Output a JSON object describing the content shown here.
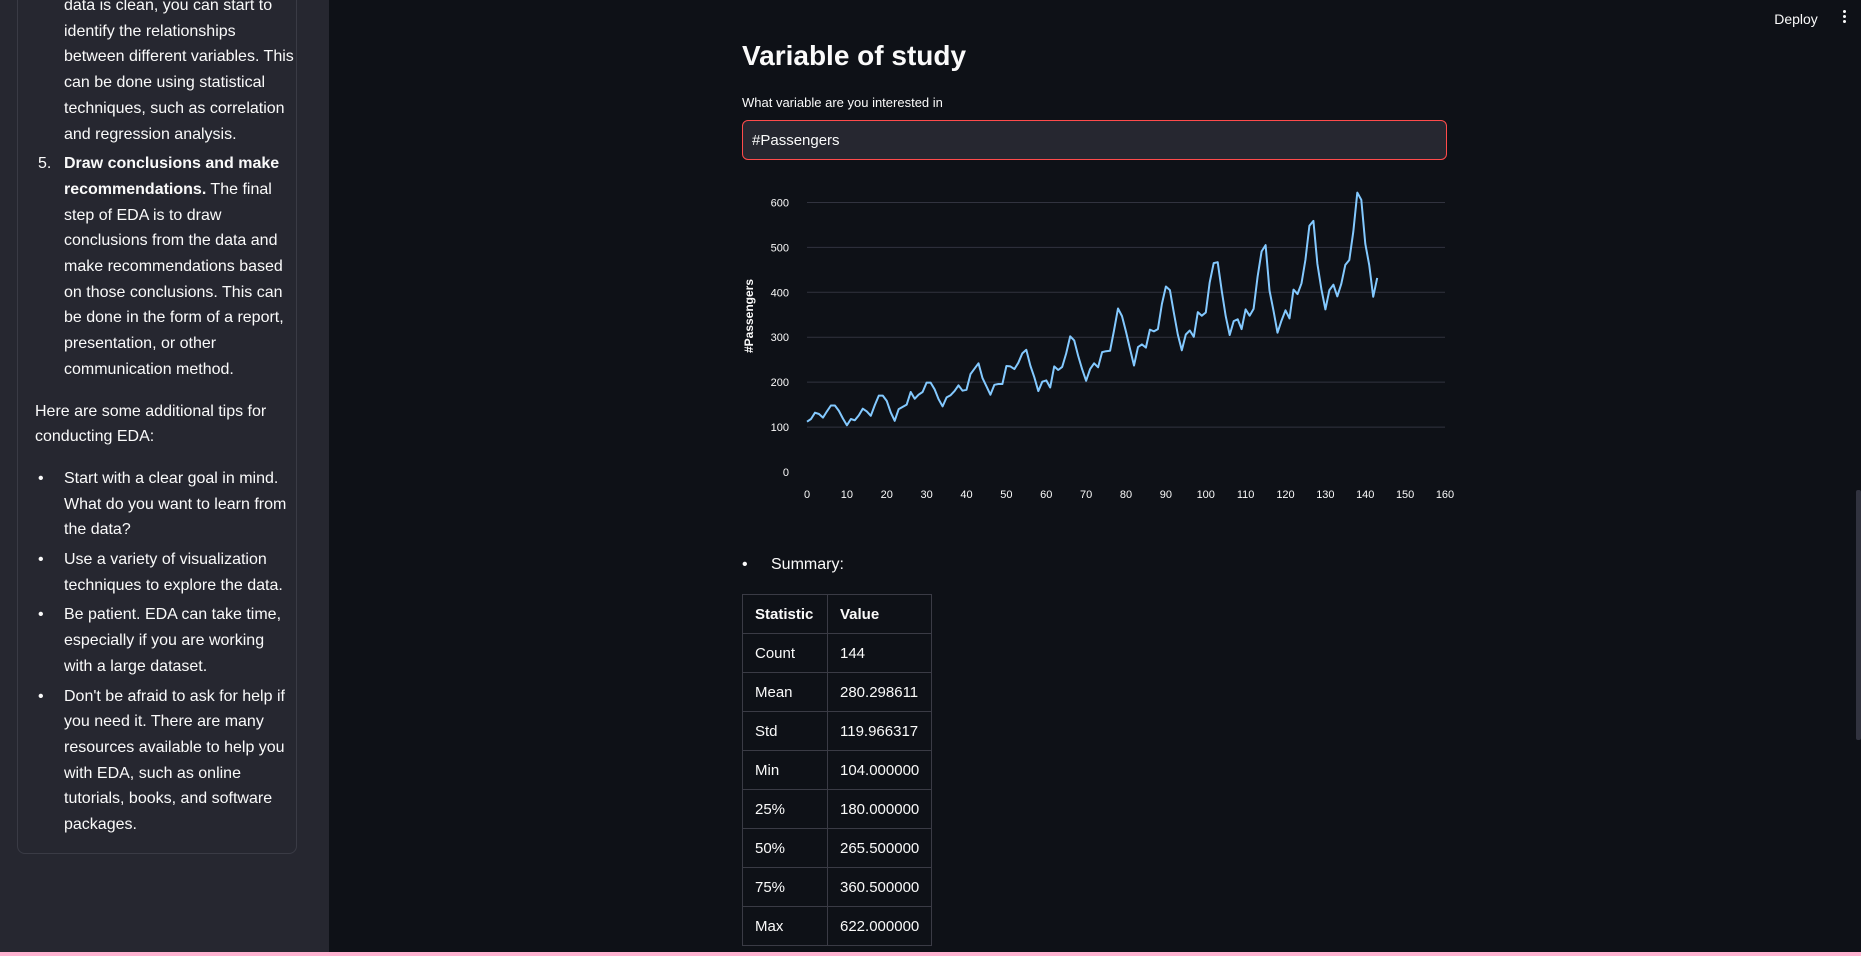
{
  "sidebar": {
    "step4_tail_lines": [
      "data is clean, you can start to",
      "identify the relationships",
      "between different variables. This",
      "can be done using statistical",
      "techniques, such as correlation",
      "and regression analysis."
    ],
    "step5": {
      "number": "5.",
      "bold_lines": [
        "Draw conclusions and make",
        "recommendations."
      ],
      "line2_rest": " The final",
      "rest_lines": [
        "step of EDA is to draw",
        "conclusions from the data and",
        "make recommendations based",
        "on those conclusions. This can",
        "be done in the form of a report,",
        "presentation, or other",
        "communication method."
      ]
    },
    "tips_intro_lines": [
      "Here are some additional tips for",
      "conducting EDA:"
    ],
    "bullet": "•",
    "tips": [
      [
        "Start with a clear goal in mind.",
        "What do you want to learn from",
        "the data?"
      ],
      [
        "Use a variety of visualization",
        "techniques to explore the data."
      ],
      [
        "Be patient. EDA can take time,",
        "especially if you are working",
        "with a large dataset."
      ],
      [
        "Don't be afraid to ask for help if",
        "you need it. There are many",
        "resources available to help you",
        "with EDA, such as online",
        "tutorials, books, and software",
        "packages."
      ]
    ]
  },
  "header": {
    "deploy_label": "Deploy",
    "menu_icon": "more-vert-icon"
  },
  "main": {
    "title": "Variable of study",
    "field_label": "What variable are you interested in",
    "field_value": "#Passengers",
    "summary_bullet": "•",
    "summary_label": "Summary:"
  },
  "summary_table": {
    "headers": [
      "Statistic",
      "Value"
    ],
    "rows": [
      [
        "Count",
        "144"
      ],
      [
        "Mean",
        "280.298611"
      ],
      [
        "Std",
        "119.966317"
      ],
      [
        "Min",
        "104.000000"
      ],
      [
        "25%",
        "180.000000"
      ],
      [
        "50%",
        "265.500000"
      ],
      [
        "75%",
        "360.500000"
      ],
      [
        "Max",
        "622.000000"
      ]
    ]
  },
  "colors": {
    "line": "#83c9ff",
    "background": "#0e1117",
    "sidebar": "#262730",
    "input_border": "#ff4b4b"
  },
  "chart_data": {
    "type": "line",
    "ylabel": "#Passengers",
    "xlabel": "",
    "xlim": [
      0,
      160
    ],
    "ylim": [
      0,
      650
    ],
    "xticks": [
      0,
      10,
      20,
      30,
      40,
      50,
      60,
      70,
      80,
      90,
      100,
      110,
      120,
      130,
      140,
      150,
      160
    ],
    "yticks": [
      0,
      100,
      200,
      300,
      400,
      500,
      600
    ],
    "grid": true,
    "series": [
      {
        "values": [
          112,
          118,
          132,
          129,
          121,
          135,
          148,
          148,
          136,
          119,
          104,
          118,
          115,
          126,
          141,
          135,
          125,
          149,
          170,
          170,
          158,
          133,
          114,
          140,
          145,
          150,
          178,
          163,
          172,
          178,
          199,
          199,
          184,
          162,
          146,
          166,
          171,
          180,
          193,
          181,
          183,
          218,
          230,
          242,
          209,
          191,
          172,
          194,
          196,
          196,
          236,
          235,
          229,
          243,
          264,
          272,
          237,
          211,
          180,
          201,
          204,
          188,
          235,
          227,
          234,
          264,
          302,
          293,
          259,
          229,
          203,
          229,
          242,
          233,
          267,
          269,
          270,
          315,
          364,
          347,
          312,
          274,
          237,
          278,
          284,
          277,
          317,
          313,
          318,
          374,
          413,
          405,
          355,
          306,
          271,
          306,
          315,
          301,
          356,
          348,
          355,
          422,
          465,
          467,
          404,
          347,
          305,
          336,
          340,
          318,
          362,
          348,
          363,
          435,
          491,
          505,
          404,
          359,
          310,
          337,
          360,
          342,
          406,
          396,
          420,
          472,
          548,
          559,
          463,
          407,
          362,
          405,
          417,
          391,
          419,
          461,
          472,
          535,
          622,
          606,
          508,
          461,
          390,
          432
        ]
      }
    ]
  }
}
